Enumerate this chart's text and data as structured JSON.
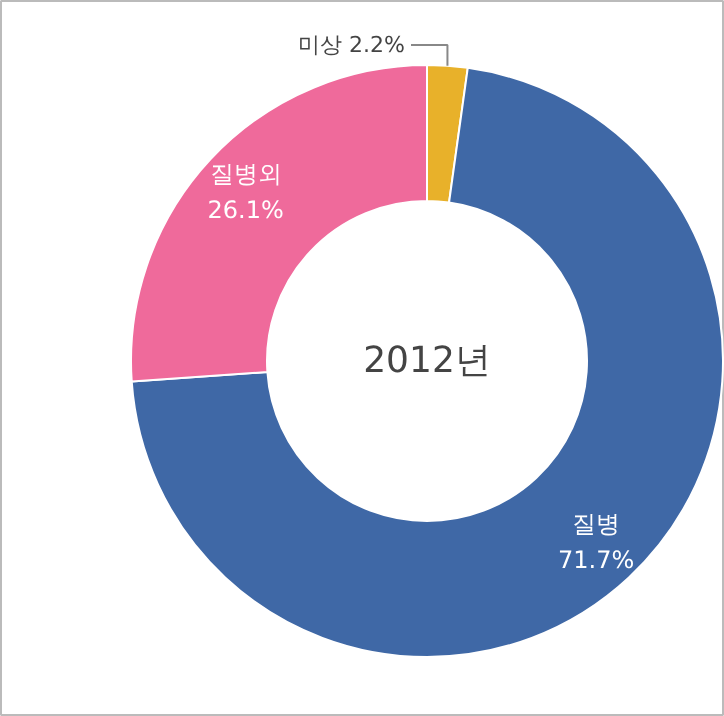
{
  "chart_data": {
    "type": "donut",
    "title": "2012년",
    "categories": [
      "미상",
      "질병",
      "질병외"
    ],
    "values": [
      2.2,
      71.7,
      26.1
    ],
    "value_labels": [
      "2.2%",
      "71.7%",
      "26.1%"
    ],
    "colors": [
      "#e8b12a",
      "#3f68a6",
      "#ef6a9b"
    ]
  }
}
